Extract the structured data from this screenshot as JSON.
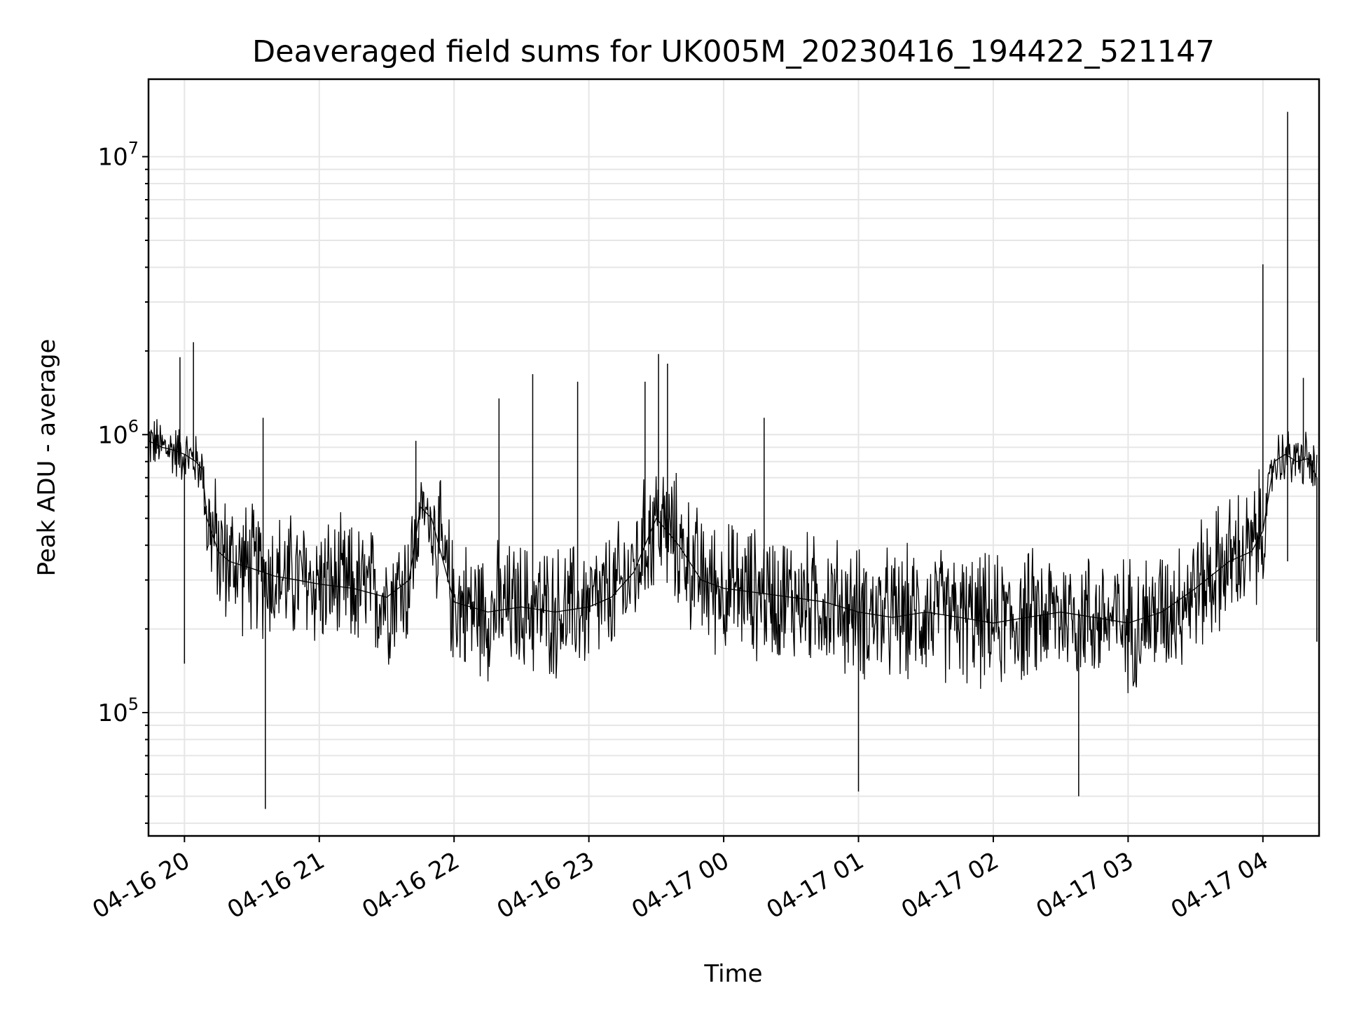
{
  "chart_data": {
    "type": "line",
    "title": "Deaveraged field sums for UK005M_20230416_194422_521147",
    "xlabel": "Time",
    "ylabel": "Peak ADU - average",
    "yscale": "log",
    "grid": "on (major and minor)",
    "xlim": [
      "2023-04-16 19:44",
      "2023-04-17 04:25"
    ],
    "ylim": [
      36000,
      19000000
    ],
    "x_ticks": [
      {
        "value": "2023-04-16 20:00",
        "label": "04-16 20"
      },
      {
        "value": "2023-04-16 21:00",
        "label": "04-16 21"
      },
      {
        "value": "2023-04-16 22:00",
        "label": "04-16 22"
      },
      {
        "value": "2023-04-16 23:00",
        "label": "04-16 23"
      },
      {
        "value": "2023-04-17 00:00",
        "label": "04-17 00"
      },
      {
        "value": "2023-04-17 01:00",
        "label": "04-17 01"
      },
      {
        "value": "2023-04-17 02:00",
        "label": "04-17 02"
      },
      {
        "value": "2023-04-17 03:00",
        "label": "04-17 03"
      },
      {
        "value": "2023-04-17 04:00",
        "label": "04-17 04"
      }
    ],
    "y_ticks": [
      {
        "value": 100000,
        "base": "10",
        "exp": "5"
      },
      {
        "value": 1000000,
        "base": "10",
        "exp": "6"
      },
      {
        "value": 10000000,
        "base": "10",
        "exp": "7"
      }
    ],
    "series": [
      {
        "color": "#000000",
        "x": [
          "2023-04-16 19:44",
          "2023-04-16 19:50",
          "2023-04-16 19:55",
          "2023-04-16 20:00",
          "2023-04-16 20:05",
          "2023-04-16 20:08",
          "2023-04-16 20:10",
          "2023-04-16 20:15",
          "2023-04-16 20:20",
          "2023-04-16 20:30",
          "2023-04-16 20:40",
          "2023-04-16 20:50",
          "2023-04-16 21:00",
          "2023-04-16 21:15",
          "2023-04-16 21:30",
          "2023-04-16 21:40",
          "2023-04-16 21:45",
          "2023-04-16 21:50",
          "2023-04-16 22:00",
          "2023-04-16 22:15",
          "2023-04-16 22:30",
          "2023-04-16 22:45",
          "2023-04-16 23:00",
          "2023-04-16 23:10",
          "2023-04-16 23:20",
          "2023-04-16 23:30",
          "2023-04-16 23:40",
          "2023-04-16 23:50",
          "2023-04-17 00:00",
          "2023-04-17 00:15",
          "2023-04-17 00:30",
          "2023-04-17 00:45",
          "2023-04-17 01:00",
          "2023-04-17 01:15",
          "2023-04-17 01:30",
          "2023-04-17 01:45",
          "2023-04-17 02:00",
          "2023-04-17 02:15",
          "2023-04-17 02:30",
          "2023-04-17 02:45",
          "2023-04-17 03:00",
          "2023-04-17 03:15",
          "2023-04-17 03:30",
          "2023-04-17 03:45",
          "2023-04-17 03:55",
          "2023-04-17 04:00",
          "2023-04-17 04:05",
          "2023-04-17 04:10",
          "2023-04-17 04:15",
          "2023-04-17 04:20",
          "2023-04-17 04:24"
        ],
        "y": [
          950000,
          900000,
          880000,
          850000,
          800000,
          750000,
          500000,
          380000,
          350000,
          330000,
          310000,
          300000,
          290000,
          280000,
          260000,
          300000,
          550000,
          500000,
          250000,
          230000,
          240000,
          230000,
          240000,
          260000,
          320000,
          500000,
          400000,
          300000,
          280000,
          270000,
          260000,
          250000,
          230000,
          220000,
          230000,
          220000,
          210000,
          220000,
          230000,
          220000,
          210000,
          230000,
          280000,
          350000,
          380000,
          450000,
          800000,
          850000,
          800000,
          820000,
          700000
        ],
        "spikes": [
          {
            "x": "2023-04-16 19:58",
            "y": 1900000
          },
          {
            "x": "2023-04-16 20:00",
            "y": 150000
          },
          {
            "x": "2023-04-16 20:04",
            "y": 2150000
          },
          {
            "x": "2023-04-16 20:35",
            "y": 1150000
          },
          {
            "x": "2023-04-16 20:36",
            "y": 45000
          },
          {
            "x": "2023-04-16 21:43",
            "y": 950000
          },
          {
            "x": "2023-04-16 22:20",
            "y": 1350000
          },
          {
            "x": "2023-04-16 22:35",
            "y": 1650000
          },
          {
            "x": "2023-04-16 22:55",
            "y": 1550000
          },
          {
            "x": "2023-04-16 23:25",
            "y": 1550000
          },
          {
            "x": "2023-04-16 23:31",
            "y": 1950000
          },
          {
            "x": "2023-04-16 23:35",
            "y": 1800000
          },
          {
            "x": "2023-04-17 00:18",
            "y": 1150000
          },
          {
            "x": "2023-04-17 01:00",
            "y": 52000
          },
          {
            "x": "2023-04-17 02:38",
            "y": 50000
          },
          {
            "x": "2023-04-17 04:00",
            "y": 4100000
          },
          {
            "x": "2023-04-17 04:11",
            "y": 14500000
          },
          {
            "x": "2023-04-17 04:11",
            "y": 350000
          },
          {
            "x": "2023-04-17 04:18",
            "y": 1600000
          },
          {
            "x": "2023-04-17 04:24",
            "y": 180000
          }
        ]
      }
    ]
  }
}
